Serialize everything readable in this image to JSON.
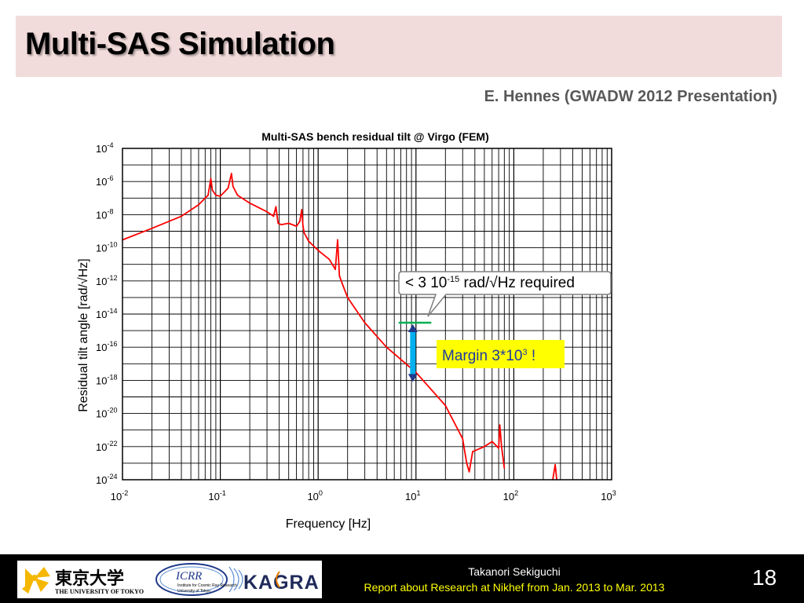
{
  "slide": {
    "title": "Multi-SAS Simulation",
    "citation": "E. Hennes (GWADW 2012 Presentation)",
    "page_number": "18"
  },
  "footer": {
    "author": "Takanori Sekiguchi",
    "report": "Report about Research at Nikhef from Jan. 2013 to Mar. 2013",
    "logos": {
      "utokyo_kanji": "東京大学",
      "utokyo_english": "THE UNIVERSITY OF TOKYO",
      "icrr": "ICRR",
      "icrr_sub1": "Institute for Cosmic Ray Research",
      "icrr_sub2": "University of Tokyo",
      "kagra": "KAGRA"
    }
  },
  "annotations": {
    "requirement": "< 3 10-15 rad/√Hz required",
    "margin": "Margin 3*103 !"
  },
  "chart_data": {
    "type": "line",
    "title": "Multi-SAS bench residual tilt @ Virgo (FEM)",
    "xlabel": "Frequency [Hz]",
    "ylabel": "Residual tilt angle [rad/√Hz]",
    "xscale": "log",
    "yscale": "log",
    "xlim": [
      0.01,
      1000
    ],
    "ylim": [
      1e-24,
      0.0001
    ],
    "grid": true,
    "xticks": [
      {
        "base": "10",
        "exp": "-2"
      },
      {
        "base": "10",
        "exp": "-1"
      },
      {
        "base": "10",
        "exp": "0"
      },
      {
        "base": "10",
        "exp": "1"
      },
      {
        "base": "10",
        "exp": "2"
      },
      {
        "base": "10",
        "exp": "3"
      }
    ],
    "yticks": [
      {
        "base": "10",
        "exp": "-4"
      },
      {
        "base": "10",
        "exp": "-6"
      },
      {
        "base": "10",
        "exp": "-8"
      },
      {
        "base": "10",
        "exp": "-10"
      },
      {
        "base": "10",
        "exp": "-12"
      },
      {
        "base": "10",
        "exp": "-14"
      },
      {
        "base": "10",
        "exp": "-16"
      },
      {
        "base": "10",
        "exp": "-18"
      },
      {
        "base": "10",
        "exp": "-20"
      },
      {
        "base": "10",
        "exp": "-22"
      },
      {
        "base": "10",
        "exp": "-24"
      }
    ],
    "series": [
      {
        "color": "#ff0000",
        "x": [
          0.01,
          0.02,
          0.04,
          0.06,
          0.075,
          0.08,
          0.083,
          0.09,
          0.1,
          0.12,
          0.13,
          0.135,
          0.15,
          0.2,
          0.3,
          0.35,
          0.37,
          0.39,
          0.42,
          0.5,
          0.6,
          0.65,
          0.68,
          0.7,
          0.72,
          0.8,
          1.0,
          1.3,
          1.5,
          1.58,
          1.65,
          1.8,
          2,
          3,
          5,
          10,
          20,
          30,
          33,
          35,
          38,
          50,
          60,
          70,
          72,
          75,
          80
        ],
        "y": [
          3e-10,
          1.5e-09,
          8e-09,
          4e-08,
          1.5e-07,
          1.5e-06,
          3e-07,
          1.5e-07,
          1.3e-07,
          4e-07,
          3e-06,
          5e-07,
          1.5e-07,
          5e-08,
          1.5e-08,
          8e-09,
          3e-08,
          3e-09,
          2.5e-09,
          3e-09,
          2e-09,
          4e-09,
          2e-08,
          2e-09,
          8e-10,
          2.5e-10,
          7e-11,
          2e-11,
          5e-12,
          3e-10,
          2e-12,
          5e-13,
          1e-13,
          3e-15,
          1e-16,
          3e-18,
          3e-20,
          3e-22,
          1e-23,
          3e-24,
          5e-23,
          1e-22,
          2e-22,
          8e-23,
          2e-21,
          1e-22,
          5e-24
        ]
      },
      {
        "color": "#ff0000",
        "x": [
          250,
          265,
          275
        ],
        "y": [
          1e-24,
          8e-24,
          1e-24
        ]
      }
    ],
    "requirement_line": {
      "color": "#00b050",
      "x_range": [
        10,
        20
      ],
      "y": 3e-15
    },
    "margin_arrow": {
      "color": "#00b0f0",
      "x": 10,
      "y_top": 3e-15,
      "y_bottom": 1e-18
    }
  }
}
